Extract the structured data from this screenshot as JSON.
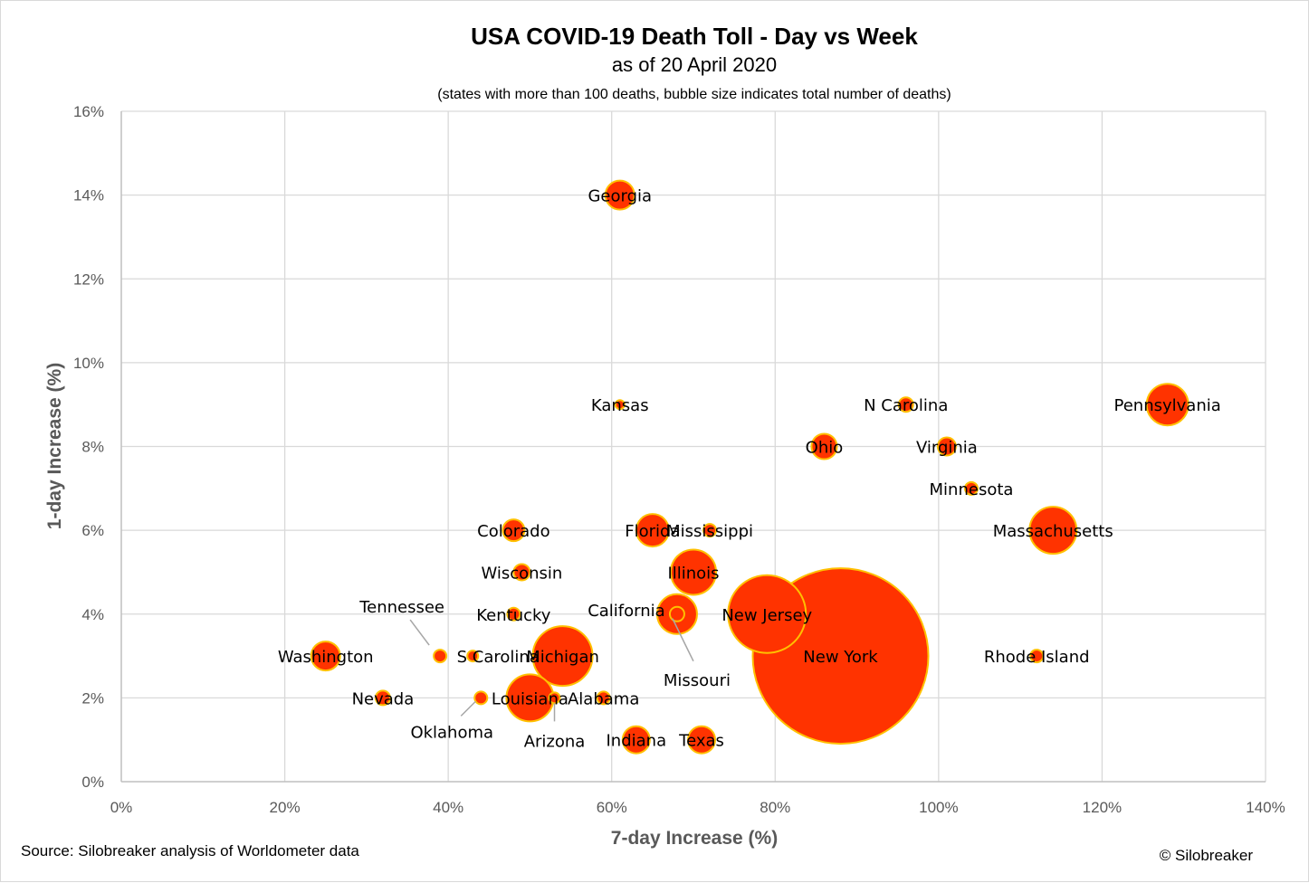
{
  "chart_data": {
    "type": "scatter",
    "title": "USA COVID-19 Death Toll - Day vs Week",
    "subtitle": "as of 20 April 2020",
    "note": "(states with more than 100 deaths, bubble size indicates total number of deaths)",
    "xlabel": "7-day Increase (%)",
    "ylabel": "1-day Increase (%)",
    "xlim": [
      0,
      140
    ],
    "ylim": [
      0,
      16
    ],
    "xticks": [
      "0%",
      "20%",
      "40%",
      "60%",
      "80%",
      "100%",
      "120%",
      "140%"
    ],
    "yticks": [
      "0%",
      "2%",
      "4%",
      "6%",
      "8%",
      "10%",
      "12%",
      "14%",
      "16%"
    ],
    "grid": true,
    "legend": "none",
    "colors": {
      "bubble_fill": "#ff3300",
      "bubble_stroke": "#ffc000",
      "grid": "#d9d9d9",
      "leader": "#a6a6a6"
    },
    "points": [
      {
        "label": "New York",
        "x": 88,
        "y": 3.0,
        "r": 97
      },
      {
        "label": "New Jersey",
        "x": 79,
        "y": 4.0,
        "r": 43
      },
      {
        "label": "Michigan",
        "x": 54,
        "y": 3.0,
        "r": 33
      },
      {
        "label": "Massachusetts",
        "x": 114,
        "y": 6.0,
        "r": 26
      },
      {
        "label": "Louisiana",
        "x": 50,
        "y": 2.0,
        "r": 26
      },
      {
        "label": "Illinois",
        "x": 70,
        "y": 5.0,
        "r": 25
      },
      {
        "label": "Pennsylvania",
        "x": 128,
        "y": 9.0,
        "r": 23
      },
      {
        "label": "California",
        "x": 68,
        "y": 4.0,
        "r": 22
      },
      {
        "label": "Florida",
        "x": 65,
        "y": 6.0,
        "r": 18
      },
      {
        "label": "Georgia",
        "x": 61,
        "y": 14.0,
        "r": 16
      },
      {
        "label": "Washington",
        "x": 25,
        "y": 3.0,
        "r": 16
      },
      {
        "label": "Indiana",
        "x": 63,
        "y": 1.0,
        "r": 15
      },
      {
        "label": "Texas",
        "x": 71,
        "y": 1.0,
        "r": 15
      },
      {
        "label": "Ohio",
        "x": 86,
        "y": 8.0,
        "r": 14
      },
      {
        "label": "Colorado",
        "x": 48,
        "y": 6.0,
        "r": 12
      },
      {
        "label": "Virginia",
        "x": 101,
        "y": 8.0,
        "r": 10
      },
      {
        "label": "Wisconsin",
        "x": 49,
        "y": 5.0,
        "r": 9
      },
      {
        "label": "N Carolina",
        "x": 96,
        "y": 9.0,
        "r": 8
      },
      {
        "label": "Missouri",
        "x": 68,
        "y": 4.0,
        "r": 8
      },
      {
        "label": "Rhode Island",
        "x": 112,
        "y": 3.0,
        "r": 7
      },
      {
        "label": "Minnesota",
        "x": 104,
        "y": 7.0,
        "r": 7
      },
      {
        "label": "Mississippi",
        "x": 72,
        "y": 6.0,
        "r": 7
      },
      {
        "label": "Kentucky",
        "x": 48,
        "y": 4.0,
        "r": 7
      },
      {
        "label": "Tennessee",
        "x": 39,
        "y": 3.0,
        "r": 7
      },
      {
        "label": "S Carolina",
        "x": 43,
        "y": 3.0,
        "r": 6
      },
      {
        "label": "Nevada",
        "x": 32,
        "y": 2.0,
        "r": 8
      },
      {
        "label": "Alabama",
        "x": 59,
        "y": 2.0,
        "r": 7
      },
      {
        "label": "Arizona",
        "x": 53,
        "y": 2.0,
        "r": 6
      },
      {
        "label": "Oklahoma",
        "x": 44,
        "y": 2.0,
        "r": 7
      },
      {
        "label": "Kansas",
        "x": 61,
        "y": 9.0,
        "r": 5
      }
    ]
  },
  "footer": {
    "source": "Source: Silobreaker analysis of Worldometer data",
    "copyright": "© Silobreaker"
  }
}
